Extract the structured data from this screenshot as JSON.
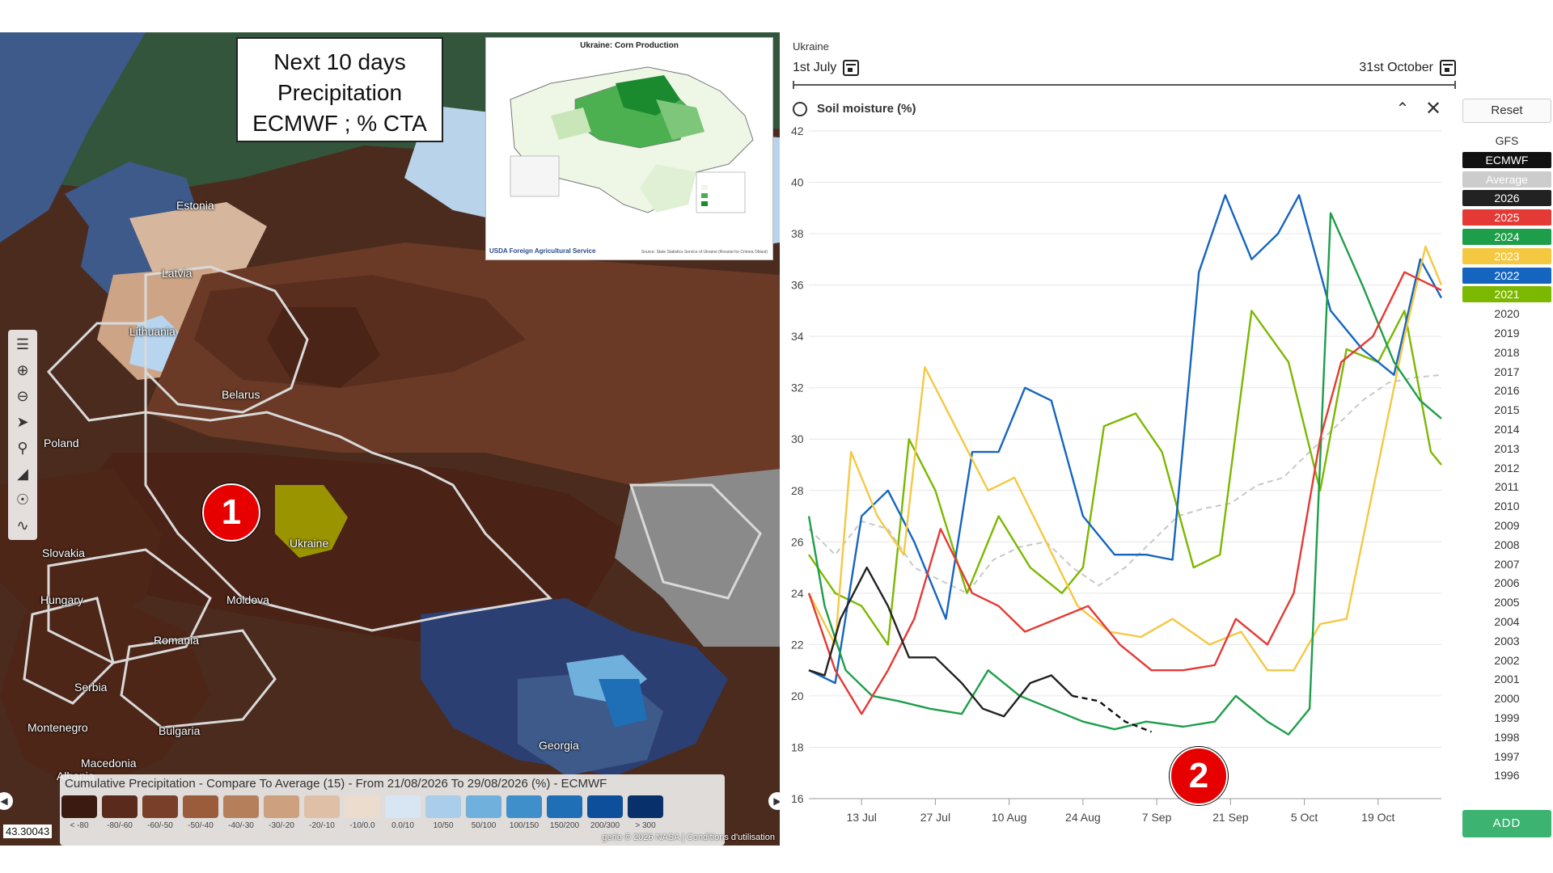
{
  "map": {
    "title_lines": [
      "Next 10 days",
      "Precipitation",
      "ECMWF ; % CTA"
    ],
    "country_labels": [
      {
        "name": "Estonia"
      },
      {
        "name": "Latvia"
      },
      {
        "name": "Lithuania"
      },
      {
        "name": "Belarus"
      },
      {
        "name": "Poland"
      },
      {
        "name": "Ukraine"
      },
      {
        "name": "Slovakia"
      },
      {
        "name": "Hungary"
      },
      {
        "name": "Moldova"
      },
      {
        "name": "Romania"
      },
      {
        "name": "Serbia"
      },
      {
        "name": "Montenegro"
      },
      {
        "name": "Bulgaria"
      },
      {
        "name": "Macedonia"
      },
      {
        "name": "Georgia"
      },
      {
        "name": "Albania"
      }
    ],
    "inset": {
      "title": "Ukraine: Corn Production",
      "agency": "USDA Foreign Agricultural Service",
      "source": "Source: State Statistics Service of Ukraine (Rosstat for Crimea Oblast)"
    },
    "marker_1": "1",
    "legend_title": "Cumulative Precipitation - Compare To Average (15) - From 21/08/2026 To 29/08/2026 (%) - ECMWF",
    "legend_items": [
      {
        "label": "< -80",
        "color": "#3b1a12"
      },
      {
        "label": "-80/-60",
        "color": "#5a2a1c"
      },
      {
        "label": "-60/-50",
        "color": "#7a3f28"
      },
      {
        "label": "-50/-40",
        "color": "#9a5c3a"
      },
      {
        "label": "-40/-30",
        "color": "#b57f5b"
      },
      {
        "label": "-30/-20",
        "color": "#cda080"
      },
      {
        "label": "-20/-10",
        "color": "#dfc0a6"
      },
      {
        "label": "-10/0.0",
        "color": "#ecdccd"
      },
      {
        "label": "0.0/10",
        "color": "#d8e6f4"
      },
      {
        "label": "10/50",
        "color": "#a9cdea"
      },
      {
        "label": "50/100",
        "color": "#6fb0dd"
      },
      {
        "label": "100/150",
        "color": "#3f8fcb"
      },
      {
        "label": "150/200",
        "color": "#1f6fb7"
      },
      {
        "label": "200/300",
        "color": "#0d4f9a"
      },
      {
        "label": "> 300",
        "color": "#08306b"
      }
    ],
    "coord_text": "43.30043",
    "attribution": "gerie © 2026 NASA | Conditions d'utilisation"
  },
  "chart_header": {
    "region": "Ukraine",
    "start_date": "1st July",
    "end_date": "31st October"
  },
  "chart_panel": {
    "title": "Soil moisture (%)",
    "marker_2": "2",
    "reset_label": "Reset",
    "add_label": "ADD",
    "series_legend": [
      {
        "label": "GFS",
        "bg": "",
        "fg": "#333333"
      },
      {
        "label": "ECMWF",
        "bg": "#111111",
        "fg": "#ffffff"
      },
      {
        "label": "Average",
        "bg": "#cccccc",
        "fg": "#ffffff"
      },
      {
        "label": "2026",
        "bg": "#222222",
        "fg": "#ffffff"
      },
      {
        "label": "2025",
        "bg": "#e53935",
        "fg": "#ffffff"
      },
      {
        "label": "2024",
        "bg": "#1e9e4a",
        "fg": "#ffffff"
      },
      {
        "label": "2023",
        "bg": "#f5c842",
        "fg": "#ffffff"
      },
      {
        "label": "2022",
        "bg": "#1565c0",
        "fg": "#ffffff"
      },
      {
        "label": "2021",
        "bg": "#7cb800",
        "fg": "#ffffff"
      },
      {
        "label": "2020",
        "bg": "",
        "fg": "#333333"
      },
      {
        "label": "2019",
        "bg": "",
        "fg": "#333333"
      },
      {
        "label": "2018",
        "bg": "",
        "fg": "#333333"
      },
      {
        "label": "2017",
        "bg": "",
        "fg": "#333333"
      },
      {
        "label": "2016",
        "bg": "",
        "fg": "#333333"
      },
      {
        "label": "2015",
        "bg": "",
        "fg": "#333333"
      },
      {
        "label": "2014",
        "bg": "",
        "fg": "#333333"
      },
      {
        "label": "2013",
        "bg": "",
        "fg": "#333333"
      },
      {
        "label": "2012",
        "bg": "",
        "fg": "#333333"
      },
      {
        "label": "2011",
        "bg": "",
        "fg": "#333333"
      },
      {
        "label": "2010",
        "bg": "",
        "fg": "#333333"
      },
      {
        "label": "2009",
        "bg": "",
        "fg": "#333333"
      },
      {
        "label": "2008",
        "bg": "",
        "fg": "#333333"
      },
      {
        "label": "2007",
        "bg": "",
        "fg": "#333333"
      },
      {
        "label": "2006",
        "bg": "",
        "fg": "#333333"
      },
      {
        "label": "2005",
        "bg": "",
        "fg": "#333333"
      },
      {
        "label": "2004",
        "bg": "",
        "fg": "#333333"
      },
      {
        "label": "2003",
        "bg": "",
        "fg": "#333333"
      },
      {
        "label": "2002",
        "bg": "",
        "fg": "#333333"
      },
      {
        "label": "2001",
        "bg": "",
        "fg": "#333333"
      },
      {
        "label": "2000",
        "bg": "",
        "fg": "#333333"
      },
      {
        "label": "1999",
        "bg": "",
        "fg": "#333333"
      },
      {
        "label": "1998",
        "bg": "",
        "fg": "#333333"
      },
      {
        "label": "1997",
        "bg": "",
        "fg": "#333333"
      },
      {
        "label": "1996",
        "bg": "",
        "fg": "#333333"
      }
    ]
  },
  "chart_data": {
    "type": "line",
    "title": "Soil moisture (%)",
    "x_tick_labels": [
      "13 Jul",
      "27 Jul",
      "10 Aug",
      "24 Aug",
      "7 Sep",
      "21 Sep",
      "5 Oct",
      "19 Oct"
    ],
    "x_tick_dates": [
      "2026-07-13",
      "2026-07-27",
      "2026-08-10",
      "2026-08-24",
      "2026-09-07",
      "2026-09-21",
      "2026-10-05",
      "2026-10-19"
    ],
    "xlim": [
      "2026-07-03",
      "2026-10-31"
    ],
    "ylim": [
      16,
      42
    ],
    "y_ticks": [
      16,
      18,
      20,
      22,
      24,
      26,
      28,
      30,
      32,
      34,
      36,
      38,
      40,
      42
    ],
    "grid": true,
    "series": [
      {
        "name": "Average",
        "color": "#c8c8c8",
        "dashed": true,
        "points": [
          [
            "2026-07-03",
            26.5
          ],
          [
            "2026-07-08",
            25.5
          ],
          [
            "2026-07-13",
            26.8
          ],
          [
            "2026-07-18",
            26.5
          ],
          [
            "2026-07-23",
            25.0
          ],
          [
            "2026-07-28",
            24.5
          ],
          [
            "2026-08-02",
            24.0
          ],
          [
            "2026-08-07",
            25.3
          ],
          [
            "2026-08-12",
            25.8
          ],
          [
            "2026-08-17",
            26.0
          ],
          [
            "2026-08-22",
            25.0
          ],
          [
            "2026-08-27",
            24.3
          ],
          [
            "2026-09-01",
            25.0
          ],
          [
            "2026-09-06",
            26.0
          ],
          [
            "2026-09-11",
            27.0
          ],
          [
            "2026-09-16",
            27.3
          ],
          [
            "2026-09-21",
            27.5
          ],
          [
            "2026-09-26",
            28.2
          ],
          [
            "2026-10-01",
            28.5
          ],
          [
            "2026-10-06",
            29.5
          ],
          [
            "2026-10-11",
            30.5
          ],
          [
            "2026-10-16",
            31.5
          ],
          [
            "2026-10-21",
            32.2
          ],
          [
            "2026-10-26",
            32.4
          ],
          [
            "2026-10-31",
            32.5
          ]
        ]
      },
      {
        "name": "2021",
        "color": "#7cb800",
        "points": [
          [
            "2026-07-03",
            25.5
          ],
          [
            "2026-07-08",
            24.0
          ],
          [
            "2026-07-13",
            23.5
          ],
          [
            "2026-07-18",
            22.0
          ],
          [
            "2026-07-22",
            30.0
          ],
          [
            "2026-07-27",
            28.0
          ],
          [
            "2026-08-02",
            24.0
          ],
          [
            "2026-08-08",
            27.0
          ],
          [
            "2026-08-14",
            25.0
          ],
          [
            "2026-08-20",
            24.0
          ],
          [
            "2026-08-24",
            25.0
          ],
          [
            "2026-08-28",
            30.5
          ],
          [
            "2026-09-03",
            31.0
          ],
          [
            "2026-09-08",
            29.5
          ],
          [
            "2026-09-14",
            25.0
          ],
          [
            "2026-09-19",
            25.5
          ],
          [
            "2026-09-25",
            35.0
          ],
          [
            "2026-10-02",
            33.0
          ],
          [
            "2026-10-08",
            28.0
          ],
          [
            "2026-10-13",
            33.5
          ],
          [
            "2026-10-19",
            33.0
          ],
          [
            "2026-10-24",
            35.0
          ],
          [
            "2026-10-29",
            29.5
          ],
          [
            "2026-10-31",
            29.0
          ]
        ]
      },
      {
        "name": "2022",
        "color": "#1565c0",
        "points": [
          [
            "2026-07-03",
            21.0
          ],
          [
            "2026-07-08",
            20.5
          ],
          [
            "2026-07-13",
            27.0
          ],
          [
            "2026-07-18",
            28.0
          ],
          [
            "2026-07-23",
            26.0
          ],
          [
            "2026-07-29",
            23.0
          ],
          [
            "2026-08-03",
            29.5
          ],
          [
            "2026-08-08",
            29.5
          ],
          [
            "2026-08-13",
            32.0
          ],
          [
            "2026-08-18",
            31.5
          ],
          [
            "2026-08-24",
            27.0
          ],
          [
            "2026-08-30",
            25.5
          ],
          [
            "2026-09-05",
            25.5
          ],
          [
            "2026-09-10",
            25.3
          ],
          [
            "2026-09-15",
            36.5
          ],
          [
            "2026-09-20",
            39.5
          ],
          [
            "2026-09-25",
            37.0
          ],
          [
            "2026-09-30",
            38.0
          ],
          [
            "2026-10-04",
            39.5
          ],
          [
            "2026-10-10",
            35.0
          ],
          [
            "2026-10-16",
            33.5
          ],
          [
            "2026-10-22",
            32.5
          ],
          [
            "2026-10-27",
            37.0
          ],
          [
            "2026-10-31",
            35.5
          ]
        ]
      },
      {
        "name": "2023",
        "color": "#f5c842",
        "points": [
          [
            "2026-07-03",
            24.0
          ],
          [
            "2026-07-08",
            22.0
          ],
          [
            "2026-07-11",
            29.5
          ],
          [
            "2026-07-16",
            27.0
          ],
          [
            "2026-07-21",
            25.5
          ],
          [
            "2026-07-25",
            32.8
          ],
          [
            "2026-08-01",
            30.0
          ],
          [
            "2026-08-06",
            28.0
          ],
          [
            "2026-08-11",
            28.5
          ],
          [
            "2026-08-17",
            26.0
          ],
          [
            "2026-08-23",
            23.5
          ],
          [
            "2026-08-29",
            22.5
          ],
          [
            "2026-09-04",
            22.3
          ],
          [
            "2026-09-10",
            23.0
          ],
          [
            "2026-09-17",
            22.0
          ],
          [
            "2026-09-23",
            22.5
          ],
          [
            "2026-09-28",
            21.0
          ],
          [
            "2026-10-03",
            21.0
          ],
          [
            "2026-10-08",
            22.8
          ],
          [
            "2026-10-13",
            23.0
          ],
          [
            "2026-10-18",
            28.0
          ],
          [
            "2026-10-24",
            34.0
          ],
          [
            "2026-10-28",
            37.5
          ],
          [
            "2026-10-31",
            36.0
          ]
        ]
      },
      {
        "name": "2024",
        "color": "#1e9e4a",
        "points": [
          [
            "2026-07-03",
            27.0
          ],
          [
            "2026-07-06",
            23.5
          ],
          [
            "2026-07-10",
            21.0
          ],
          [
            "2026-07-15",
            20.0
          ],
          [
            "2026-07-20",
            19.8
          ],
          [
            "2026-07-26",
            19.5
          ],
          [
            "2026-08-01",
            19.3
          ],
          [
            "2026-08-06",
            21.0
          ],
          [
            "2026-08-12",
            20.0
          ],
          [
            "2026-08-18",
            19.5
          ],
          [
            "2026-08-24",
            19.0
          ],
          [
            "2026-08-30",
            18.7
          ],
          [
            "2026-09-05",
            19.0
          ],
          [
            "2026-09-12",
            18.8
          ],
          [
            "2026-09-18",
            19.0
          ],
          [
            "2026-09-22",
            20.0
          ],
          [
            "2026-09-28",
            19.0
          ],
          [
            "2026-10-02",
            18.5
          ],
          [
            "2026-10-06",
            19.5
          ],
          [
            "2026-10-10",
            38.8
          ],
          [
            "2026-10-16",
            36.0
          ],
          [
            "2026-10-22",
            33.0
          ],
          [
            "2026-10-27",
            31.5
          ],
          [
            "2026-10-31",
            30.8
          ]
        ]
      },
      {
        "name": "2025",
        "color": "#e53935",
        "points": [
          [
            "2026-07-03",
            24.0
          ],
          [
            "2026-07-08",
            21.0
          ],
          [
            "2026-07-13",
            19.3
          ],
          [
            "2026-07-18",
            21.0
          ],
          [
            "2026-07-23",
            23.0
          ],
          [
            "2026-07-28",
            26.5
          ],
          [
            "2026-08-03",
            24.0
          ],
          [
            "2026-08-08",
            23.5
          ],
          [
            "2026-08-13",
            22.5
          ],
          [
            "2026-08-19",
            23.0
          ],
          [
            "2026-08-25",
            23.5
          ],
          [
            "2026-08-31",
            22.0
          ],
          [
            "2026-09-06",
            21.0
          ],
          [
            "2026-09-12",
            21.0
          ],
          [
            "2026-09-18",
            21.2
          ],
          [
            "2026-09-22",
            23.0
          ],
          [
            "2026-09-28",
            22.0
          ],
          [
            "2026-10-03",
            24.0
          ],
          [
            "2026-10-08",
            30.0
          ],
          [
            "2026-10-12",
            33.0
          ],
          [
            "2026-10-18",
            34.0
          ],
          [
            "2026-10-24",
            36.5
          ],
          [
            "2026-10-29",
            36.0
          ],
          [
            "2026-10-31",
            35.8
          ]
        ]
      },
      {
        "name": "2026",
        "color": "#222222",
        "points": [
          [
            "2026-07-03",
            21.0
          ],
          [
            "2026-07-06",
            20.8
          ],
          [
            "2026-07-09",
            23.0
          ],
          [
            "2026-07-14",
            25.0
          ],
          [
            "2026-07-18",
            23.5
          ],
          [
            "2026-07-22",
            21.5
          ],
          [
            "2026-07-27",
            21.5
          ],
          [
            "2026-08-01",
            20.5
          ],
          [
            "2026-08-05",
            19.5
          ],
          [
            "2026-08-09",
            19.2
          ],
          [
            "2026-08-14",
            20.5
          ],
          [
            "2026-08-18",
            20.8
          ],
          [
            "2026-08-22",
            20.0
          ]
        ]
      },
      {
        "name": "ECMWF",
        "color": "#111111",
        "dashed": true,
        "points": [
          [
            "2026-08-22",
            20.0
          ],
          [
            "2026-08-27",
            19.8
          ],
          [
            "2026-09-01",
            19.0
          ],
          [
            "2026-09-06",
            18.6
          ]
        ]
      }
    ]
  }
}
